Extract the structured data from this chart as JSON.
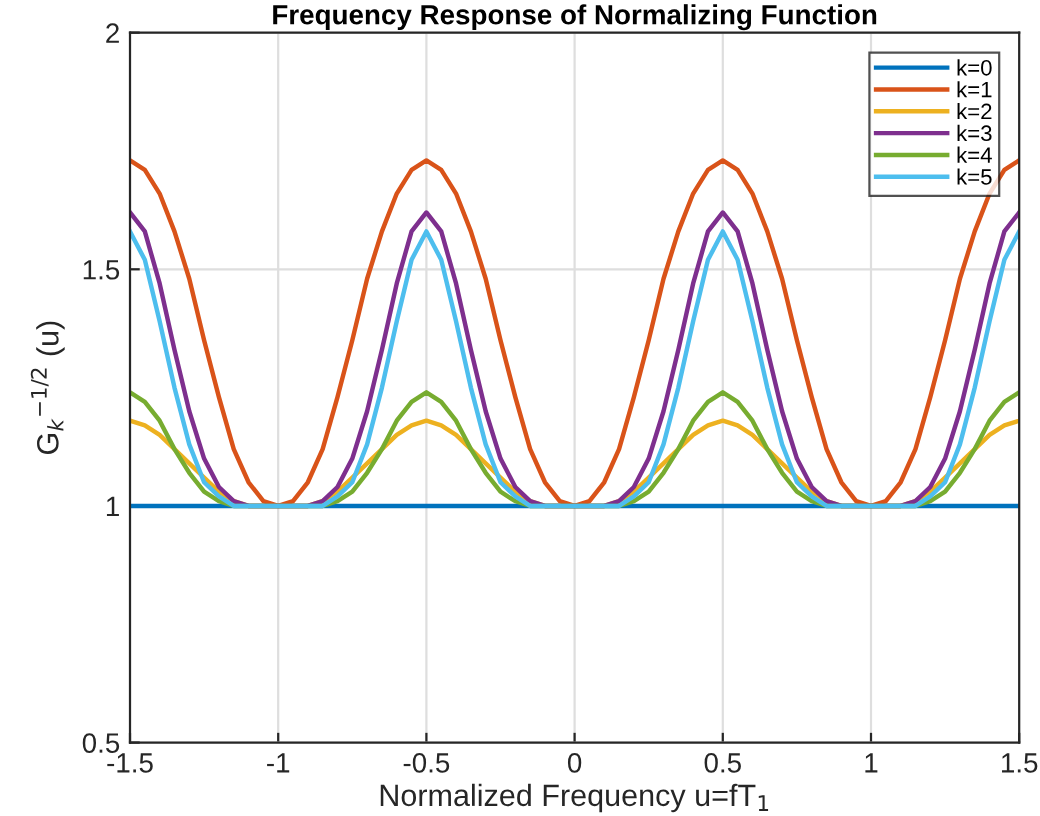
{
  "chart_data": {
    "type": "line",
    "title": "Frequency Response of Normalizing Function",
    "xlabel": "Normalized Frequency u=fT$_{1}$",
    "ylabel": "G$_{k}$$^{−1/2}$ (u)",
    "x": [
      -1.5,
      -1.45,
      -1.4,
      -1.35,
      -1.3,
      -1.25,
      -1.2,
      -1.15,
      -1.1,
      -1.05,
      -1.0,
      -0.95,
      -0.9,
      -0.85,
      -0.8,
      -0.75,
      -0.7,
      -0.65,
      -0.6,
      -0.55,
      -0.5,
      -0.45,
      -0.4,
      -0.35,
      -0.3,
      -0.25,
      -0.2,
      -0.15,
      -0.1,
      -0.05,
      0,
      0.05,
      0.1,
      0.15,
      0.2,
      0.25,
      0.3,
      0.35,
      0.4,
      0.45,
      0.5,
      0.55,
      0.6,
      0.65,
      0.7,
      0.75,
      0.8,
      0.85,
      0.9,
      0.95,
      1.0,
      1.05,
      1.1,
      1.15,
      1.2,
      1.25,
      1.3,
      1.35,
      1.4,
      1.45,
      1.5
    ],
    "series": [
      {
        "name": "k=0",
        "color": "#0072bd",
        "values": [
          1,
          1,
          1,
          1,
          1,
          1,
          1,
          1,
          1,
          1,
          1,
          1,
          1,
          1,
          1,
          1,
          1,
          1,
          1,
          1,
          1,
          1,
          1,
          1,
          1,
          1,
          1,
          1,
          1,
          1,
          1,
          1,
          1,
          1,
          1,
          1,
          1,
          1,
          1,
          1,
          1,
          1,
          1,
          1,
          1,
          1,
          1,
          1,
          1,
          1,
          1,
          1,
          1,
          1,
          1,
          1,
          1,
          1,
          1,
          1,
          1
        ]
      },
      {
        "name": "k=1",
        "color": "#d95319",
        "values": [
          1.73,
          1.71,
          1.66,
          1.58,
          1.48,
          1.35,
          1.23,
          1.12,
          1.05,
          1.01,
          1.0,
          1.01,
          1.05,
          1.12,
          1.23,
          1.35,
          1.48,
          1.58,
          1.66,
          1.71,
          1.73,
          1.71,
          1.66,
          1.58,
          1.48,
          1.35,
          1.23,
          1.12,
          1.05,
          1.01,
          1.0,
          1.01,
          1.05,
          1.12,
          1.23,
          1.35,
          1.48,
          1.58,
          1.66,
          1.71,
          1.73,
          1.71,
          1.66,
          1.58,
          1.48,
          1.35,
          1.23,
          1.12,
          1.05,
          1.01,
          1.0,
          1.01,
          1.05,
          1.12,
          1.23,
          1.35,
          1.48,
          1.58,
          1.66,
          1.71,
          1.73
        ]
      },
      {
        "name": "k=2",
        "color": "#edb120",
        "values": [
          1.18,
          1.17,
          1.15,
          1.12,
          1.09,
          1.06,
          1.03,
          1.01,
          1.0,
          1.0,
          1.0,
          1.0,
          1.0,
          1.01,
          1.03,
          1.06,
          1.09,
          1.12,
          1.15,
          1.17,
          1.18,
          1.17,
          1.15,
          1.12,
          1.09,
          1.06,
          1.03,
          1.01,
          1.0,
          1.0,
          1.0,
          1.0,
          1.0,
          1.01,
          1.03,
          1.06,
          1.09,
          1.12,
          1.15,
          1.17,
          1.18,
          1.17,
          1.15,
          1.12,
          1.09,
          1.06,
          1.03,
          1.01,
          1.0,
          1.0,
          1.0,
          1.0,
          1.0,
          1.01,
          1.03,
          1.06,
          1.09,
          1.12,
          1.15,
          1.17,
          1.18
        ]
      },
      {
        "name": "k=3",
        "color": "#7e2f8e",
        "values": [
          1.62,
          1.58,
          1.47,
          1.33,
          1.2,
          1.1,
          1.04,
          1.01,
          1.0,
          1.0,
          1.0,
          1.0,
          1.0,
          1.01,
          1.04,
          1.1,
          1.2,
          1.33,
          1.47,
          1.58,
          1.62,
          1.58,
          1.47,
          1.33,
          1.2,
          1.1,
          1.04,
          1.01,
          1.0,
          1.0,
          1.0,
          1.0,
          1.0,
          1.01,
          1.04,
          1.1,
          1.2,
          1.33,
          1.47,
          1.58,
          1.62,
          1.58,
          1.47,
          1.33,
          1.2,
          1.1,
          1.04,
          1.01,
          1.0,
          1.0,
          1.0,
          1.0,
          1.0,
          1.01,
          1.04,
          1.1,
          1.2,
          1.33,
          1.47,
          1.58,
          1.62
        ]
      },
      {
        "name": "k=4",
        "color": "#77ac30",
        "values": [
          1.24,
          1.22,
          1.18,
          1.12,
          1.07,
          1.03,
          1.01,
          1.0,
          1.0,
          1.0,
          1.0,
          1.0,
          1.0,
          1.0,
          1.01,
          1.03,
          1.07,
          1.12,
          1.18,
          1.22,
          1.24,
          1.22,
          1.18,
          1.12,
          1.07,
          1.03,
          1.01,
          1.0,
          1.0,
          1.0,
          1.0,
          1.0,
          1.0,
          1.0,
          1.01,
          1.03,
          1.07,
          1.12,
          1.18,
          1.22,
          1.24,
          1.22,
          1.18,
          1.12,
          1.07,
          1.03,
          1.01,
          1.0,
          1.0,
          1.0,
          1.0,
          1.0,
          1.0,
          1.0,
          1.01,
          1.03,
          1.07,
          1.12,
          1.18,
          1.22,
          1.24
        ]
      },
      {
        "name": "k=5",
        "color": "#4dbeee",
        "values": [
          1.58,
          1.52,
          1.39,
          1.25,
          1.13,
          1.05,
          1.02,
          1.0,
          1.0,
          1.0,
          1.0,
          1.0,
          1.0,
          1.0,
          1.02,
          1.05,
          1.13,
          1.25,
          1.39,
          1.52,
          1.58,
          1.52,
          1.39,
          1.25,
          1.13,
          1.05,
          1.02,
          1.0,
          1.0,
          1.0,
          1.0,
          1.0,
          1.0,
          1.0,
          1.02,
          1.05,
          1.13,
          1.25,
          1.39,
          1.52,
          1.58,
          1.52,
          1.39,
          1.25,
          1.13,
          1.05,
          1.02,
          1.0,
          1.0,
          1.0,
          1.0,
          1.0,
          1.0,
          1.0,
          1.02,
          1.05,
          1.13,
          1.25,
          1.39,
          1.52,
          1.58
        ]
      }
    ],
    "xlim": [
      -1.5,
      1.5
    ],
    "xticks": [
      -1.5,
      -1,
      -0.5,
      0,
      0.5,
      1,
      1.5
    ],
    "ylim": [
      0.5,
      2
    ],
    "yticks": [
      0.5,
      1,
      1.5,
      2
    ],
    "grid": true,
    "legend": "top right",
    "marker": "none",
    "line_style": "solid"
  }
}
